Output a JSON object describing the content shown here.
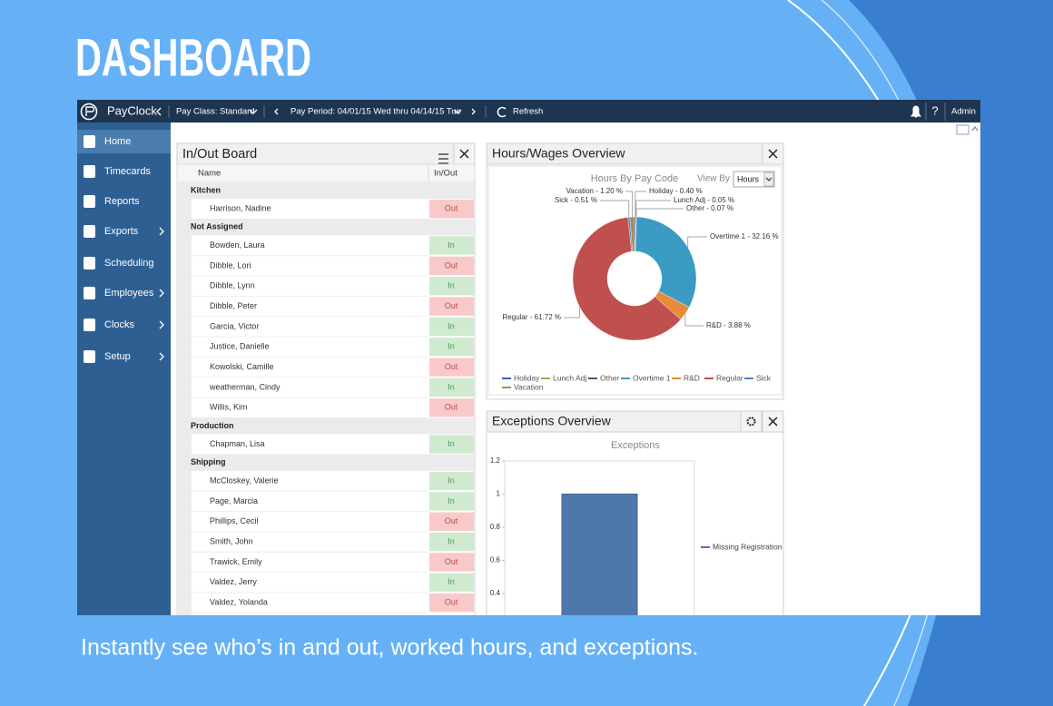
{
  "header": {
    "title": "DASHBOARD",
    "caption": "Instantly see who’s in and out, worked hours, and exceptions."
  },
  "toolbar": {
    "brand": "PayClock",
    "pay_class": "Pay Class: Standard",
    "pay_period": "Pay Period: 04/01/15 Wed thru 04/14/15 Tue",
    "refresh": "Refresh",
    "help": "?",
    "user": "Admin"
  },
  "nav": [
    "Home",
    "Timecards",
    "Reports",
    "Exports",
    "Scheduling",
    "Employees",
    "Clocks",
    "Setup"
  ],
  "inout_board": {
    "title": "In/Out Board",
    "columns": [
      "Name",
      "In/Out"
    ],
    "groups": [
      {
        "name": "Kitchen",
        "rows": [
          {
            "name": "Harrison, Nadine",
            "status": "Out"
          }
        ]
      },
      {
        "name": "Not Assigned",
        "rows": [
          {
            "name": "Bowden, Laura",
            "status": "In"
          },
          {
            "name": "Dibble, Lori",
            "status": "Out"
          },
          {
            "name": "Dibble, Lynn",
            "status": "In"
          },
          {
            "name": "Dibble, Peter",
            "status": "Out"
          },
          {
            "name": "Garcia, Victor",
            "status": "In"
          },
          {
            "name": "Justice, Danielle",
            "status": "In"
          },
          {
            "name": "Kowolski, Camille",
            "status": "Out"
          },
          {
            "name": "weatherman, Cindy",
            "status": "In"
          },
          {
            "name": "Willis, Kim",
            "status": "Out"
          }
        ]
      },
      {
        "name": "Production",
        "rows": [
          {
            "name": "Chapman, Lisa",
            "status": "In"
          }
        ]
      },
      {
        "name": "Shipping",
        "rows": [
          {
            "name": "McCloskey, Valerie",
            "status": "In"
          },
          {
            "name": "Page, Marcia",
            "status": "In"
          },
          {
            "name": "Phillips, Cecil",
            "status": "Out"
          },
          {
            "name": "Smith, John",
            "status": "In"
          },
          {
            "name": "Trawick, Emily",
            "status": "Out"
          },
          {
            "name": "Valdez, Jerry",
            "status": "In"
          },
          {
            "name": "Valdez, Yolanda",
            "status": "Out"
          }
        ]
      }
    ]
  },
  "hours_panel": {
    "title": "Hours/Wages Overview",
    "view_by_label": "View By",
    "view_by": "Hours"
  },
  "exceptions_panel": {
    "title": "Exceptions Overview"
  },
  "chart_data": [
    {
      "type": "pie",
      "title": "Hours By Pay Code",
      "categories": [
        "Holiday",
        "Lunch Adj",
        "Other",
        "Overtime 1",
        "R&D",
        "Regular",
        "Sick",
        "Vacation"
      ],
      "values": [
        0.4,
        0.05,
        0.07,
        32.16,
        3.88,
        61.72,
        0.51,
        1.2
      ],
      "value_labels": [
        "Holiday - 0.40 %",
        "Lunch Adj - 0.05 %",
        "Other - 0.07 %",
        "Overtime 1 - 32.16 %",
        "R&D - 3.88 %",
        "Regular - 61.72 %",
        "Sick - 0.51 %",
        "Vacation - 1.20 %"
      ],
      "colors": [
        "#3f63a8",
        "#9bab3e",
        "#5e4b7c",
        "#3b9bc2",
        "#e88b38",
        "#c0504d",
        "#4f81bd",
        "#a08d5c"
      ]
    },
    {
      "type": "bar",
      "title": "Exceptions",
      "series": [
        {
          "name": "Missing Registration",
          "color": "#4f78aa",
          "values": [
            1
          ]
        }
      ],
      "ylim": [
        0,
        1.2
      ],
      "yticks": [
        0.4,
        0.6,
        0.8,
        1,
        1.2
      ]
    }
  ]
}
